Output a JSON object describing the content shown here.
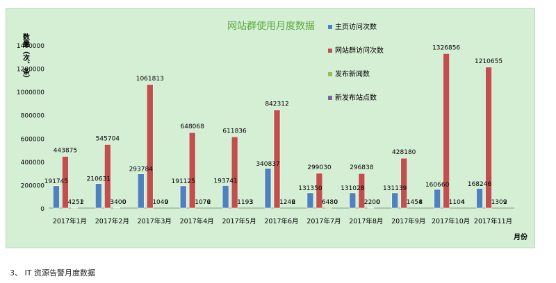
{
  "chart_data": {
    "type": "bar",
    "title": "网站群使用月度数据",
    "ylabel": "数量（次、条）",
    "xlabel": "月份",
    "ylim": [
      0,
      1400000
    ],
    "yticks": [
      "0",
      "200000",
      "400000",
      "600000",
      "800000",
      "1000000",
      "1200000",
      "1400000"
    ],
    "categories": [
      "2017年1月",
      "2017年2月",
      "2017年3月",
      "2017年4月",
      "2017年5月",
      "2017年6月",
      "2017年7月",
      "2017年8月",
      "2017年9月",
      "2017年10月",
      "2017年11月"
    ],
    "series": [
      {
        "name": "主页访问次数",
        "color": "#4f81bd",
        "values": [
          191745,
          210631,
          293784,
          191125,
          193741,
          340837,
          131350,
          131028,
          131139,
          160660,
          168246
        ]
      },
      {
        "name": "网站群访问次数",
        "color": "#c0504d",
        "values": [
          443875,
          545704,
          1061813,
          648068,
          611836,
          842312,
          299030,
          296838,
          428180,
          1326856,
          1210655
        ]
      },
      {
        "name": "发布新闻数",
        "color": "#9bbb59",
        "values": [
          4251,
          3400,
          1049,
          1076,
          1193,
          1246,
          6480,
          2200,
          1454,
          1104,
          1309
        ]
      },
      {
        "name": "新发布站点数",
        "color": "#8064a2",
        "values": [
          2,
          0,
          0,
          2,
          3,
          2,
          0,
          0,
          8,
          4,
          2
        ]
      }
    ],
    "legend_position": "right",
    "grid": false
  },
  "footer": {
    "text": "3、 IT 资源告警月度数据"
  }
}
